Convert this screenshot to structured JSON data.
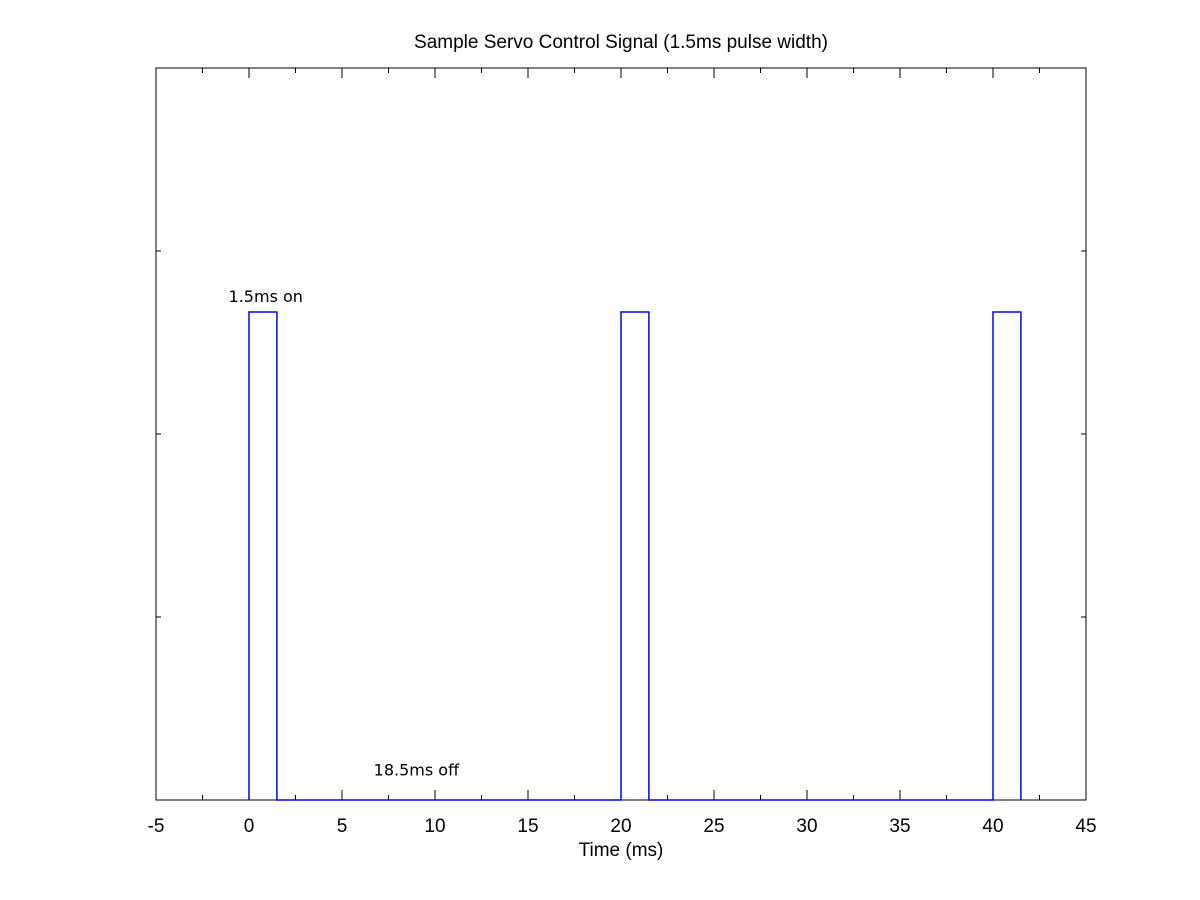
{
  "chart_data": {
    "type": "line",
    "title": "Sample Servo Control Signal (1.5ms pulse width)",
    "xlabel": "Time (ms)",
    "ylabel": "",
    "xlim": [
      -5,
      45
    ],
    "ylim": [
      0,
      1.5
    ],
    "grid": false,
    "legend": "none",
    "x_ticks": [
      -5,
      0,
      5,
      10,
      15,
      20,
      25,
      30,
      35,
      40,
      45
    ],
    "y_ticks": [],
    "series": [
      {
        "color": "#0000ff",
        "step_waveform": true,
        "points": [
          [
            0,
            0
          ],
          [
            0,
            1
          ],
          [
            1.5,
            1
          ],
          [
            1.5,
            0
          ],
          [
            20,
            0
          ],
          [
            20,
            1
          ],
          [
            21.5,
            1
          ],
          [
            21.5,
            0
          ],
          [
            40,
            0
          ],
          [
            40,
            1
          ],
          [
            41.5,
            1
          ],
          [
            41.5,
            0
          ]
        ]
      }
    ],
    "annotations": [
      {
        "text": "1.5ms on",
        "x": 0.9,
        "y": 1.02
      },
      {
        "text": "18.5ms off",
        "x": 9.0,
        "y": 0.05
      }
    ]
  }
}
